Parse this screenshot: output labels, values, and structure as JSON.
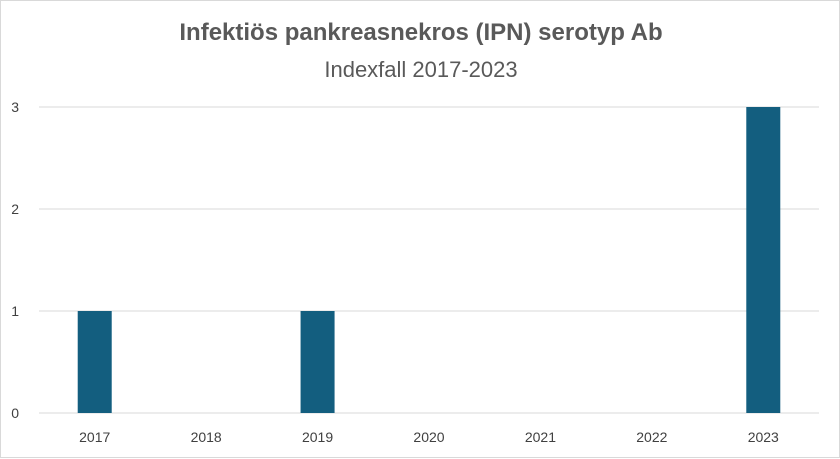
{
  "chart_data": {
    "type": "bar",
    "title": "Infektiös pankreasnekros (IPN) serotyp Ab",
    "subtitle": "Indexfall 2017-2023",
    "categories": [
      "2017",
      "2018",
      "2019",
      "2020",
      "2021",
      "2022",
      "2023"
    ],
    "series": [
      {
        "values": [
          1,
          0,
          1,
          0,
          0,
          0,
          3
        ]
      }
    ],
    "xlabel": "",
    "ylabel": "",
    "ylim": [
      0,
      3
    ],
    "yticks": [
      "0",
      "1",
      "2",
      "3"
    ],
    "grid": true,
    "legend": "none",
    "bar_color": "#135e7f",
    "gridline_color": "#d9d9d9"
  }
}
